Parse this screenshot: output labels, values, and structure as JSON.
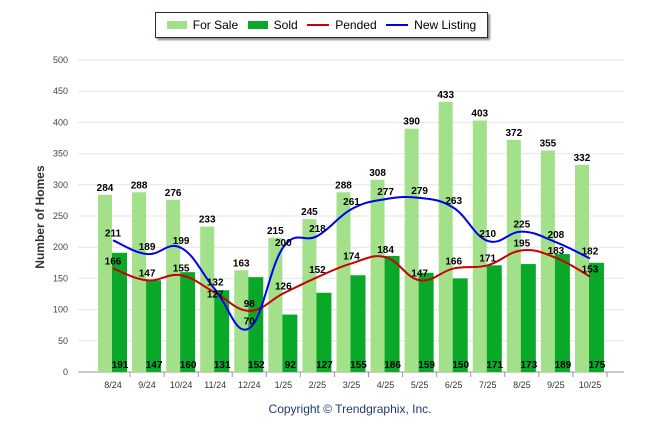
{
  "chart_data": {
    "type": "bar",
    "ylabel": "Number of Homes",
    "xlabel": "",
    "ylim": [
      0,
      500
    ],
    "yticks": [
      0,
      50,
      100,
      150,
      200,
      250,
      300,
      350,
      400,
      450,
      500
    ],
    "grid": true,
    "legend_placement": "top-center",
    "categories": [
      "8/24",
      "9/24",
      "10/24",
      "11/24",
      "12/24",
      "1/25",
      "2/25",
      "3/25",
      "4/25",
      "5/25",
      "6/25",
      "7/25",
      "8/25",
      "9/25",
      "10/25"
    ],
    "series": [
      {
        "name": "For Sale",
        "kind": "bar",
        "color": "#a3e08a",
        "values": [
          284,
          288,
          276,
          233,
          163,
          215,
          245,
          288,
          308,
          390,
          433,
          403,
          372,
          355,
          332
        ]
      },
      {
        "name": "Sold",
        "kind": "bar",
        "color": "#0aa829",
        "values": [
          191,
          147,
          160,
          131,
          152,
          92,
          127,
          155,
          186,
          159,
          150,
          171,
          173,
          189,
          175
        ]
      },
      {
        "name": "Pended",
        "kind": "line",
        "color": "#cc0000",
        "values": [
          166,
          147,
          155,
          127,
          98,
          126,
          152,
          174,
          184,
          147,
          166,
          171,
          195,
          183,
          153
        ]
      },
      {
        "name": "New Listing",
        "kind": "line",
        "color": "#0000ee",
        "values": [
          211,
          189,
          199,
          132,
          70,
          200,
          218,
          261,
          277,
          279,
          263,
          210,
          225,
          208,
          182
        ]
      }
    ]
  },
  "copyright": "Copyright © Trendgraphix, Inc."
}
